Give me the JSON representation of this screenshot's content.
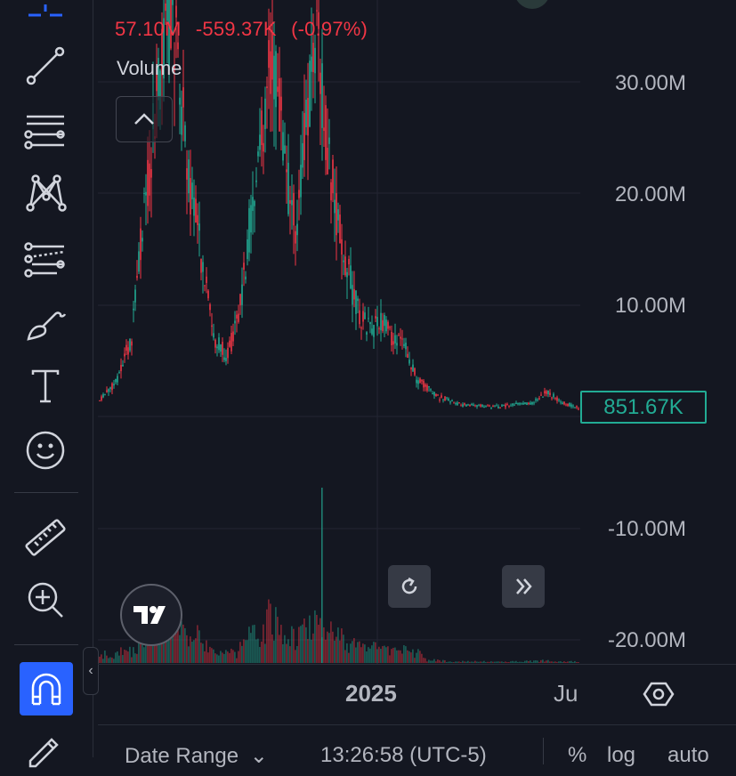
{
  "legend": {
    "last": "57.10M",
    "change": "-559.37K",
    "change_pct": "(-0.97%)"
  },
  "volume_label": "Volume",
  "price_axis": {
    "ticks": [
      "30.00M",
      "20.00M",
      "10.00M",
      "-10.00M",
      "-20.00M"
    ],
    "current_value": "851.67K"
  },
  "time_axis": {
    "labels": [
      "2025",
      "Ju"
    ]
  },
  "bottom_bar": {
    "date_range": "Date Range",
    "time": "13:26:58 (UTC-5)",
    "percent": "%",
    "log": "log",
    "auto": "auto"
  },
  "colors": {
    "up": "#22ab94",
    "down": "#f23645",
    "accent": "#2962ff",
    "background": "#141721"
  },
  "sidebar": {
    "tools": [
      "crosshair-icon",
      "trend-line-icon",
      "fib-retracement-icon",
      "pattern-icon",
      "forecast-icon",
      "brush-icon",
      "text-icon",
      "emoji-icon",
      "ruler-icon",
      "zoom-in-icon",
      "magnet-icon",
      "pencil-lock-icon"
    ]
  }
}
